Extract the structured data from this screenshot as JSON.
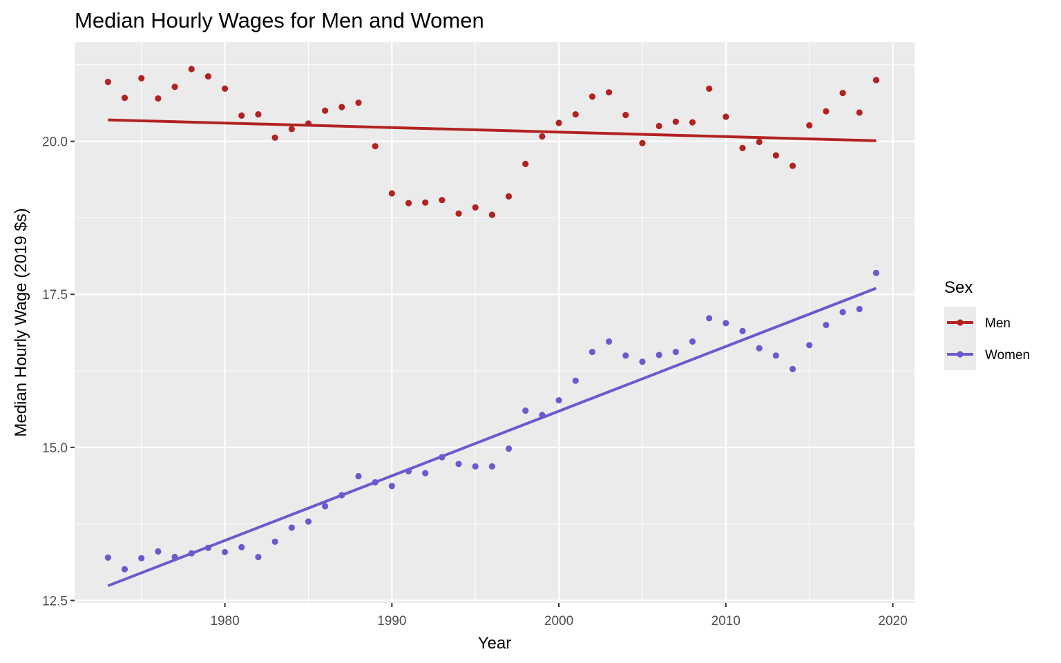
{
  "chart_data": {
    "type": "scatter",
    "title": "Median Hourly Wages for Men and Women",
    "xlabel": "Year",
    "ylabel": "Median Hourly Wage (2019 $s)",
    "xlim": [
      1971,
      2021.3
    ],
    "ylim": [
      12.46,
      21.62
    ],
    "x_ticks": [
      1980,
      1990,
      2000,
      2010,
      2020
    ],
    "x_tick_labels": [
      "1980",
      "1990",
      "2000",
      "2010",
      "2020"
    ],
    "y_ticks": [
      12.5,
      15.0,
      17.5,
      20.0
    ],
    "y_tick_labels": [
      "12.5",
      "15.0",
      "17.5",
      "20.0"
    ],
    "grid": true,
    "legend": {
      "title": "Sex",
      "placement": "right"
    },
    "years": [
      1973,
      1974,
      1975,
      1976,
      1977,
      1978,
      1979,
      1980,
      1981,
      1982,
      1983,
      1984,
      1985,
      1986,
      1987,
      1988,
      1989,
      1990,
      1991,
      1992,
      1993,
      1994,
      1995,
      1996,
      1997,
      1998,
      1999,
      2000,
      2001,
      2002,
      2003,
      2004,
      2005,
      2006,
      2007,
      2008,
      2009,
      2010,
      2011,
      2012,
      2013,
      2014,
      2015,
      2016,
      2017,
      2018,
      2019
    ],
    "series": [
      {
        "name": "Men",
        "color": "#b22222",
        "values": [
          20.97,
          20.71,
          21.03,
          20.7,
          20.89,
          21.18,
          21.06,
          20.86,
          20.42,
          20.44,
          20.06,
          20.2,
          20.29,
          20.5,
          20.56,
          20.63,
          19.92,
          19.15,
          18.99,
          19.0,
          19.04,
          18.82,
          18.92,
          18.8,
          19.1,
          19.63,
          20.08,
          20.3,
          20.44,
          20.73,
          20.8,
          20.43,
          19.97,
          20.25,
          20.32,
          20.31,
          20.86,
          20.4,
          19.89,
          19.99,
          19.77,
          19.6,
          20.26,
          20.49,
          20.79,
          20.47,
          21.0
        ],
        "trend": [
          20.35,
          20.01
        ]
      },
      {
        "name": "Women",
        "color": "#6a5acd",
        "values": [
          13.2,
          13.01,
          13.19,
          13.3,
          13.21,
          13.27,
          13.36,
          13.29,
          13.37,
          13.21,
          13.46,
          13.69,
          13.79,
          14.04,
          14.22,
          14.53,
          14.43,
          14.37,
          14.61,
          14.58,
          14.84,
          14.73,
          14.69,
          14.69,
          14.98,
          15.6,
          15.53,
          15.77,
          16.09,
          16.56,
          16.73,
          16.5,
          16.4,
          16.51,
          16.56,
          16.73,
          17.11,
          17.03,
          16.9,
          16.62,
          16.5,
          16.28,
          16.67,
          17.0,
          17.21,
          17.26,
          17.85
        ],
        "trend": [
          12.74,
          17.6
        ]
      }
    ]
  }
}
